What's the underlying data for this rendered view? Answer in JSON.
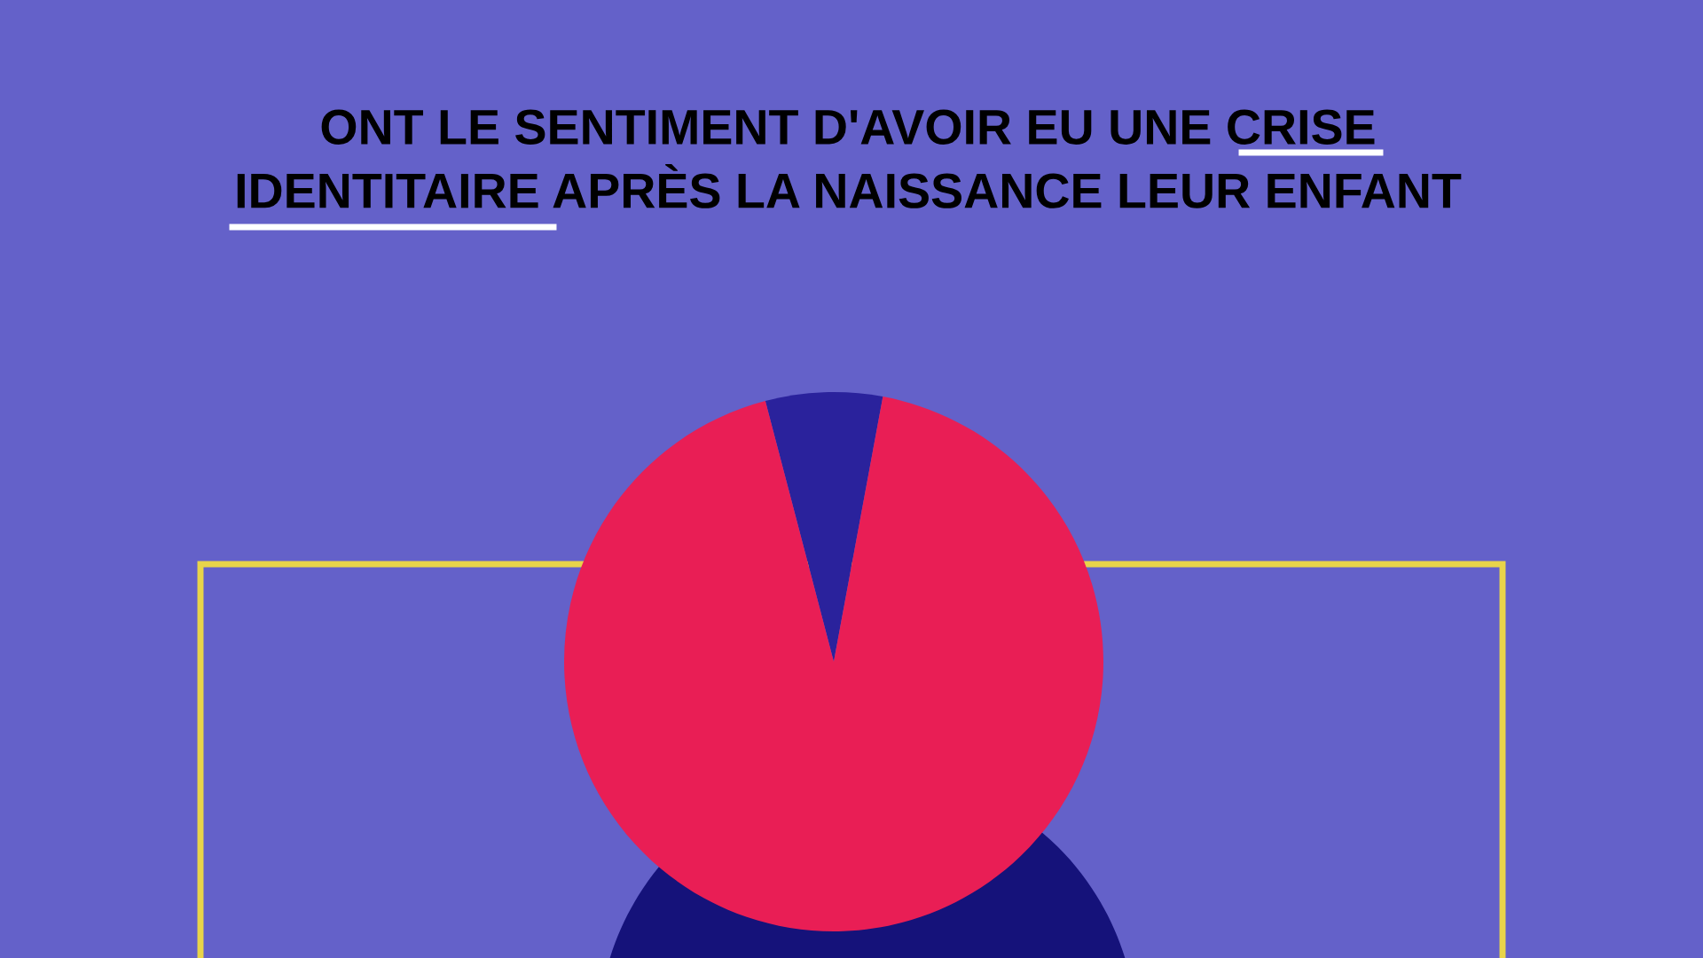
{
  "chart_data": {
    "type": "pie",
    "title": "ONT LE SENTIMENT D'AVOIR EU UNE CRISE\nIDENTITAIRE APRÈS LA NAISSANCE LEUR ENFANT",
    "categories": [
      null,
      null
    ],
    "values": [
      7,
      93
    ],
    "colors": [
      "#2a229c",
      "#e91e55"
    ],
    "legend": false
  }
}
